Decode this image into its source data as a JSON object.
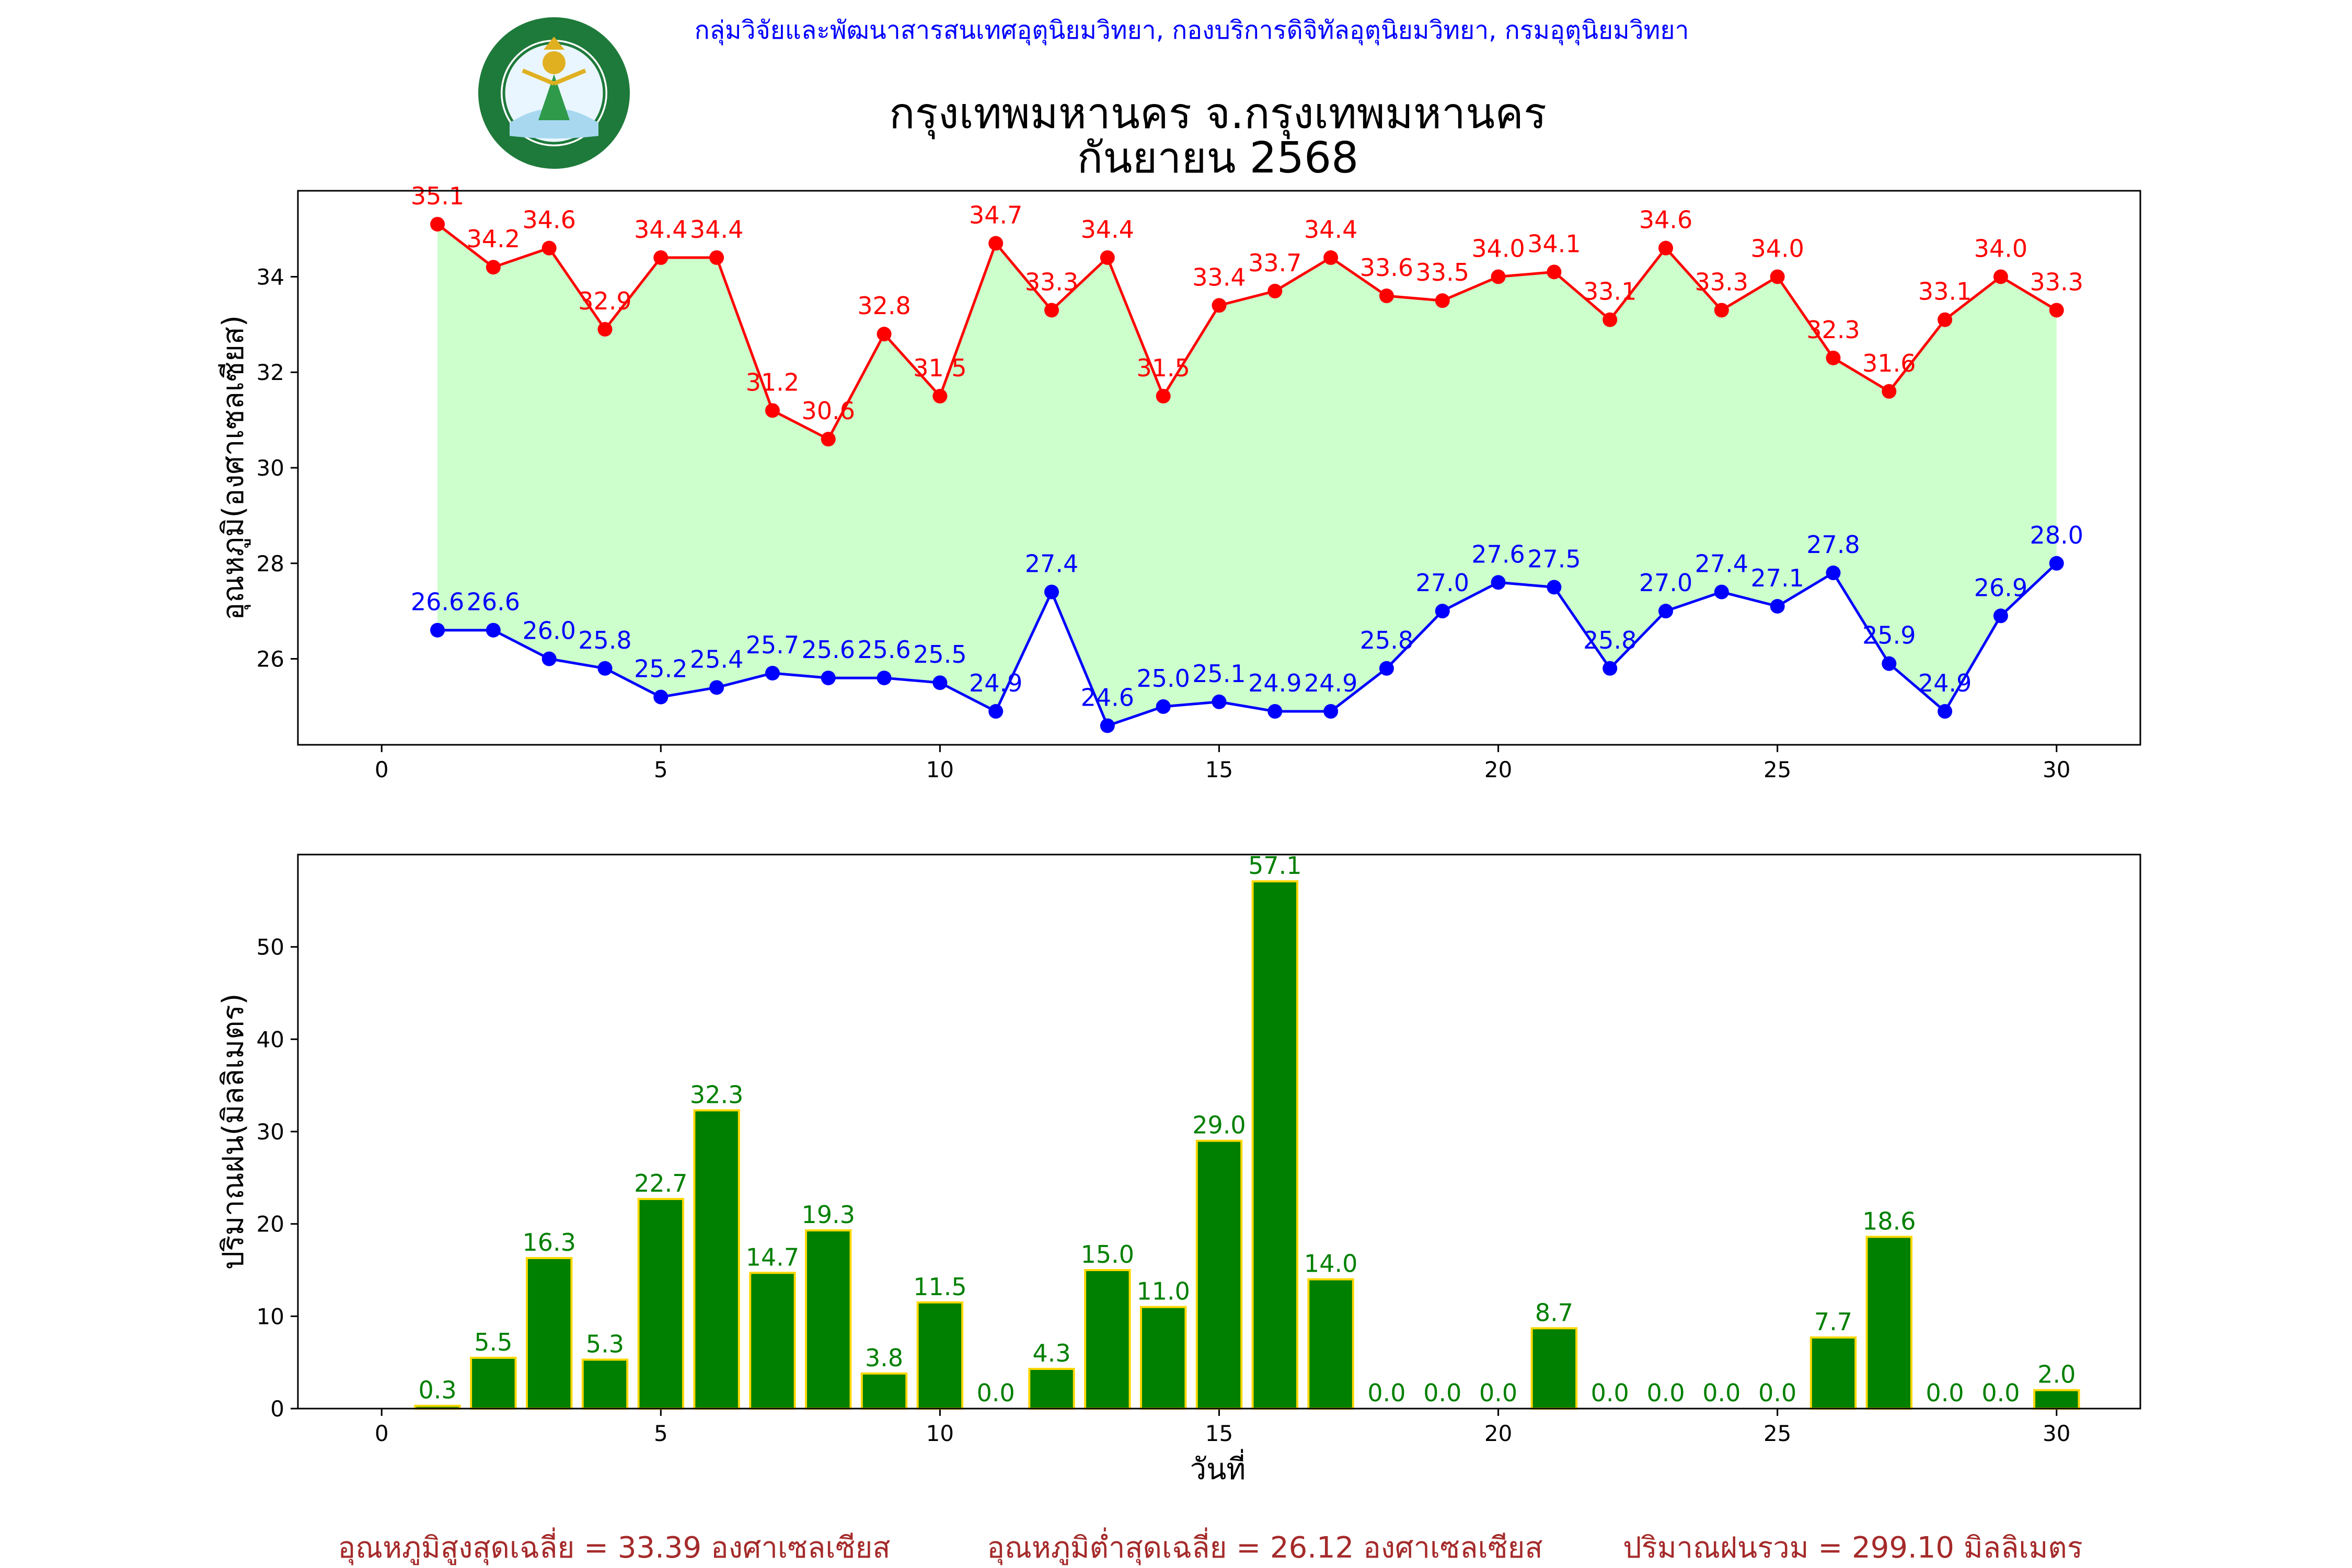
{
  "header": {
    "agency_line": "กลุ่มวิจัยและพัฒนาสารสนเทศอุตุนิยมวิทยา, กองบริการดิจิทัลอุตุนิยมวิทยา, กรมอุตุนิยมวิทยา",
    "title_line1": "กรุงเทพมหานคร จ.กรุงเทพมหานคร",
    "title_line2": "กันยายน 2568",
    "logo": {
      "ring_text_top": "กรมอุตุนิยมวิทยา",
      "ring_text_bottom": "METEOROLOGICAL DEPARTMENT"
    }
  },
  "colors": {
    "max_line": "#ff0000",
    "min_line": "#0000ff",
    "band_fill": "#ccffcc",
    "bar_fill": "#008000",
    "bar_edge": "#ffd700",
    "footer_text": "#a52a2a",
    "logo_green": "#1e7a3a"
  },
  "chart_data": [
    {
      "type": "line",
      "ylabel": "อุณหภูมิ(องศาเซลเซียส)",
      "xlim": [
        -1.5,
        31.5
      ],
      "ylim": [
        24.2,
        35.8
      ],
      "xticks": [
        0,
        5,
        10,
        15,
        20,
        25,
        30
      ],
      "yticks": [
        26,
        28,
        30,
        32,
        34
      ],
      "fill_between": true,
      "x": [
        1,
        2,
        3,
        4,
        5,
        6,
        7,
        8,
        9,
        10,
        11,
        12,
        13,
        14,
        15,
        16,
        17,
        18,
        19,
        20,
        21,
        22,
        23,
        24,
        25,
        26,
        27,
        28,
        29,
        30
      ],
      "series": [
        {
          "values": [
            35.1,
            34.2,
            34.6,
            32.9,
            34.4,
            34.4,
            31.2,
            30.6,
            32.8,
            31.5,
            34.7,
            33.3,
            34.4,
            31.5,
            33.4,
            33.7,
            34.4,
            33.6,
            33.5,
            34.0,
            34.1,
            33.1,
            34.6,
            33.3,
            34.0,
            32.3,
            31.6,
            33.1,
            34.0,
            33.3
          ]
        },
        {
          "values": [
            26.6,
            26.6,
            26.0,
            25.8,
            25.2,
            25.4,
            25.7,
            25.6,
            25.6,
            25.5,
            24.9,
            27.4,
            24.6,
            25.0,
            25.1,
            24.9,
            24.9,
            25.8,
            27.0,
            27.6,
            27.5,
            25.8,
            27.0,
            27.4,
            27.1,
            27.8,
            25.9,
            24.9,
            26.9,
            28.0
          ]
        }
      ]
    },
    {
      "type": "bar",
      "xlabel": "วันที่",
      "ylabel": "ปริมาณฝน(มิลลิเมตร)",
      "xlim": [
        -1.5,
        31.5
      ],
      "ylim": [
        0,
        60
      ],
      "xticks": [
        0,
        5,
        10,
        15,
        20,
        25,
        30
      ],
      "yticks": [
        0,
        10,
        20,
        30,
        40,
        50
      ],
      "categories": [
        1,
        2,
        3,
        4,
        5,
        6,
        7,
        8,
        9,
        10,
        11,
        12,
        13,
        14,
        15,
        16,
        17,
        18,
        19,
        20,
        21,
        22,
        23,
        24,
        25,
        26,
        27,
        28,
        29,
        30
      ],
      "values": [
        0.3,
        5.5,
        16.3,
        5.3,
        22.7,
        32.3,
        14.7,
        19.3,
        3.8,
        11.5,
        0.0,
        4.3,
        15.0,
        11.0,
        29.0,
        57.1,
        14.0,
        0.0,
        0.0,
        0.0,
        8.7,
        0.0,
        0.0,
        0.0,
        0.0,
        7.7,
        18.6,
        0.0,
        0.0,
        2.0
      ]
    }
  ],
  "footer": {
    "avg_max": "อุณหภูมิสูงสุดเฉลี่ย = 33.39 องศาเซลเซียส",
    "avg_min": "อุณหภูมิต่ำสุดเฉลี่ย = 26.12 องศาเซลเซียส",
    "total_rain": "ปริมาณฝนรวม = 299.10 มิลลิเมตร"
  }
}
